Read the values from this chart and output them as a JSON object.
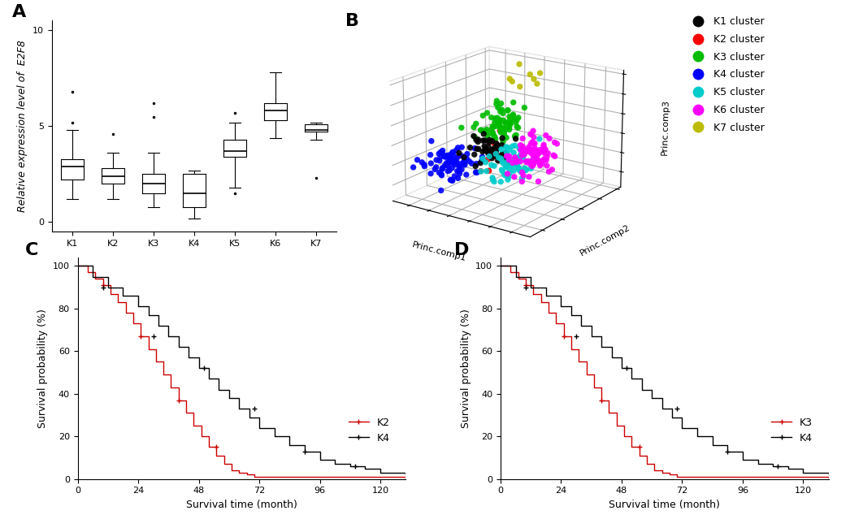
{
  "boxplot": {
    "clusters": [
      "K1",
      "K2",
      "K3",
      "K4",
      "K5",
      "K6",
      "K7"
    ],
    "data": {
      "K1": {
        "whislo": 1.2,
        "q1": 2.2,
        "med": 2.9,
        "q3": 3.3,
        "whishi": 4.8,
        "fliers_high": [
          5.2,
          6.8
        ],
        "fliers_low": []
      },
      "K2": {
        "whislo": 1.2,
        "q1": 2.0,
        "med": 2.4,
        "q3": 2.8,
        "whishi": 3.6,
        "fliers_high": [
          4.6
        ],
        "fliers_low": []
      },
      "K3": {
        "whislo": 0.8,
        "q1": 1.5,
        "med": 2.0,
        "q3": 2.5,
        "whishi": 3.6,
        "fliers_high": [
          5.5,
          6.2
        ],
        "fliers_low": []
      },
      "K4": {
        "whislo": 0.2,
        "q1": 0.8,
        "med": 1.5,
        "q3": 2.5,
        "whishi": 2.7,
        "fliers_high": [],
        "fliers_low": []
      },
      "K5": {
        "whislo": 1.8,
        "q1": 3.4,
        "med": 3.7,
        "q3": 4.3,
        "whishi": 5.2,
        "fliers_high": [
          5.7
        ],
        "fliers_low": [
          1.5
        ]
      },
      "K6": {
        "whislo": 4.4,
        "q1": 5.3,
        "med": 5.8,
        "q3": 6.2,
        "whishi": 7.8,
        "fliers_high": [],
        "fliers_low": []
      },
      "K7": {
        "whislo": 4.3,
        "q1": 4.7,
        "med": 4.8,
        "q3": 5.1,
        "whishi": 5.2,
        "fliers_high": [],
        "fliers_low": [
          2.3
        ]
      }
    },
    "ylabel": "Relative expression level of  E2F8",
    "ylim": [
      -0.5,
      10.5
    ]
  },
  "pca": {
    "cluster_colors": {
      "K1": "#000000",
      "K2": "#FF0000",
      "K3": "#00BB00",
      "K4": "#0000FF",
      "K5": "#00CCCC",
      "K6": "#FF00FF",
      "K7": "#BBBB00"
    },
    "cluster_sizes": {
      "K1": 45,
      "K2": 12,
      "K3": 75,
      "K4": 85,
      "K5": 65,
      "K6": 90,
      "K7": 8
    },
    "cluster_centers": {
      "K1": [
        0.1,
        0.1,
        0.4
      ],
      "K2": [
        0.05,
        0.15,
        0.35
      ],
      "K3": [
        -0.2,
        0.6,
        0.7
      ],
      "K4": [
        -0.6,
        -0.2,
        0.0
      ],
      "K5": [
        0.5,
        0.2,
        0.1
      ],
      "K6": [
        1.1,
        0.2,
        0.4
      ],
      "K7": [
        -0.2,
        1.3,
        1.6
      ]
    },
    "cluster_std": 0.22,
    "xlabel": "Princ.comp1",
    "ylabel": "Princ.comp2",
    "zlabel": "Princ.comp3"
  },
  "survival_C": {
    "K2_x": [
      0,
      4,
      7,
      10,
      13,
      16,
      19,
      22,
      25,
      28,
      31,
      34,
      37,
      40,
      43,
      46,
      49,
      52,
      55,
      58,
      61,
      64,
      67,
      70,
      130
    ],
    "K2_y": [
      100,
      97,
      94,
      91,
      87,
      83,
      78,
      73,
      67,
      61,
      55,
      49,
      43,
      37,
      31,
      25,
      20,
      15,
      11,
      7,
      4,
      3,
      2,
      1,
      0
    ],
    "K4_x": [
      0,
      6,
      12,
      18,
      24,
      28,
      32,
      36,
      40,
      44,
      48,
      52,
      56,
      60,
      64,
      68,
      72,
      78,
      84,
      90,
      96,
      102,
      108,
      114,
      120,
      130
    ],
    "K4_y": [
      100,
      95,
      90,
      86,
      81,
      77,
      72,
      67,
      62,
      57,
      52,
      47,
      42,
      38,
      33,
      29,
      24,
      20,
      16,
      13,
      9,
      7,
      6,
      5,
      3,
      2
    ],
    "xlabel": "Survival time (month)",
    "ylabel": "Survival probability (%)",
    "K2_color": "#CC0000",
    "K4_color": "#000000",
    "xticks": [
      0,
      24,
      48,
      72,
      96,
      120
    ],
    "yticks": [
      0,
      20,
      40,
      60,
      80,
      100
    ]
  },
  "survival_D": {
    "K3_x": [
      0,
      4,
      7,
      10,
      13,
      16,
      19,
      22,
      25,
      28,
      31,
      34,
      37,
      40,
      43,
      46,
      49,
      52,
      55,
      58,
      61,
      64,
      67,
      70,
      130
    ],
    "K3_y": [
      100,
      97,
      94,
      91,
      87,
      83,
      78,
      73,
      67,
      61,
      55,
      49,
      43,
      37,
      31,
      25,
      20,
      15,
      11,
      7,
      4,
      3,
      2,
      1,
      0
    ],
    "K4_x": [
      0,
      6,
      12,
      18,
      24,
      28,
      32,
      36,
      40,
      44,
      48,
      52,
      56,
      60,
      64,
      68,
      72,
      78,
      84,
      90,
      96,
      102,
      108,
      114,
      120,
      130
    ],
    "K4_y": [
      100,
      95,
      90,
      86,
      81,
      77,
      72,
      67,
      62,
      57,
      52,
      47,
      42,
      38,
      33,
      29,
      24,
      20,
      16,
      13,
      9,
      7,
      6,
      5,
      3,
      2
    ],
    "xlabel": "Survival time (month)",
    "ylabel": "Survival probability (%)",
    "K3_color": "#CC0000",
    "K4_color": "#000000",
    "xticks": [
      0,
      24,
      48,
      72,
      96,
      120
    ],
    "yticks": [
      0,
      20,
      40,
      60,
      80,
      100
    ]
  },
  "panel_label_fontsize": 16,
  "axis_fontsize": 9,
  "tick_fontsize": 8
}
